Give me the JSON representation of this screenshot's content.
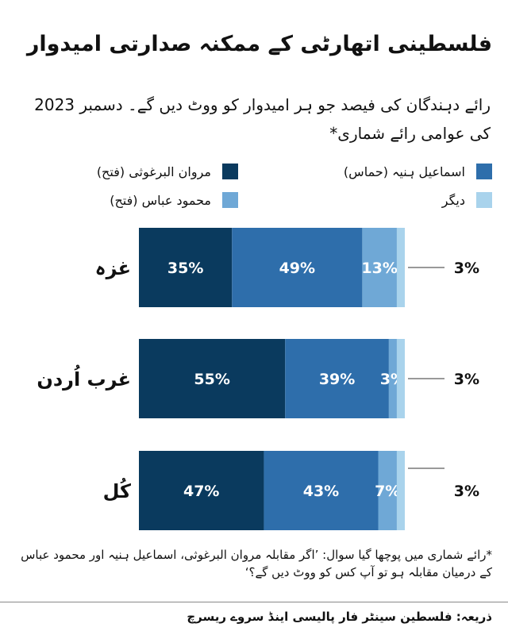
{
  "title": "فلسطینی اتھارٹی کے ممکنہ صدارتی امیدوار",
  "subtitle": "رائے دہندگان کی فیصد جو ہر امیدوار کو ووٹ دیں گے۔ دسمبر 2023 کی عوامی رائے شماری*",
  "footnote": "*رائے شماری میں پوچھا گیا سوال: ’اگر مقابلہ مروان البرغوثی، اسماعیل ہنیہ اور محمود عباس کے درمیان مقابلہ ہو تو آپ کس کو ووٹ دیں گے؟‘",
  "source": "ذریعہ: فلسطین سینٹر فار پالیسی اینڈ سروے ریسرچ",
  "chart_data": {
    "type": "bar",
    "orientation": "horizontal",
    "stacked": true,
    "unit": "%",
    "categories": [
      "غزہ",
      "غرب اُردن",
      "کُل"
    ],
    "series": [
      {
        "name": "مروان البرغوثی (فتح)",
        "color": "#0a3a5e",
        "values": [
          35,
          55,
          47
        ],
        "labels": [
          "35%",
          "55%",
          "47%"
        ]
      },
      {
        "name": "اسماعیل ہنیہ (حماس)",
        "color": "#2e6eab",
        "values": [
          49,
          39,
          43
        ],
        "labels": [
          "49%",
          "39%",
          "43%"
        ]
      },
      {
        "name": "محمود عباس (فتح)",
        "color": "#6fa8d6",
        "values": [
          13,
          3,
          7
        ],
        "labels": [
          "13%",
          "3%",
          "7%"
        ]
      },
      {
        "name": "دیگر",
        "color": "#a9d3ec",
        "values": [
          3,
          3,
          3
        ],
        "labels": [
          "3%",
          "3%",
          "3%"
        ]
      }
    ],
    "callout_series": "دیگر",
    "legend_position": "top",
    "grid": false
  }
}
